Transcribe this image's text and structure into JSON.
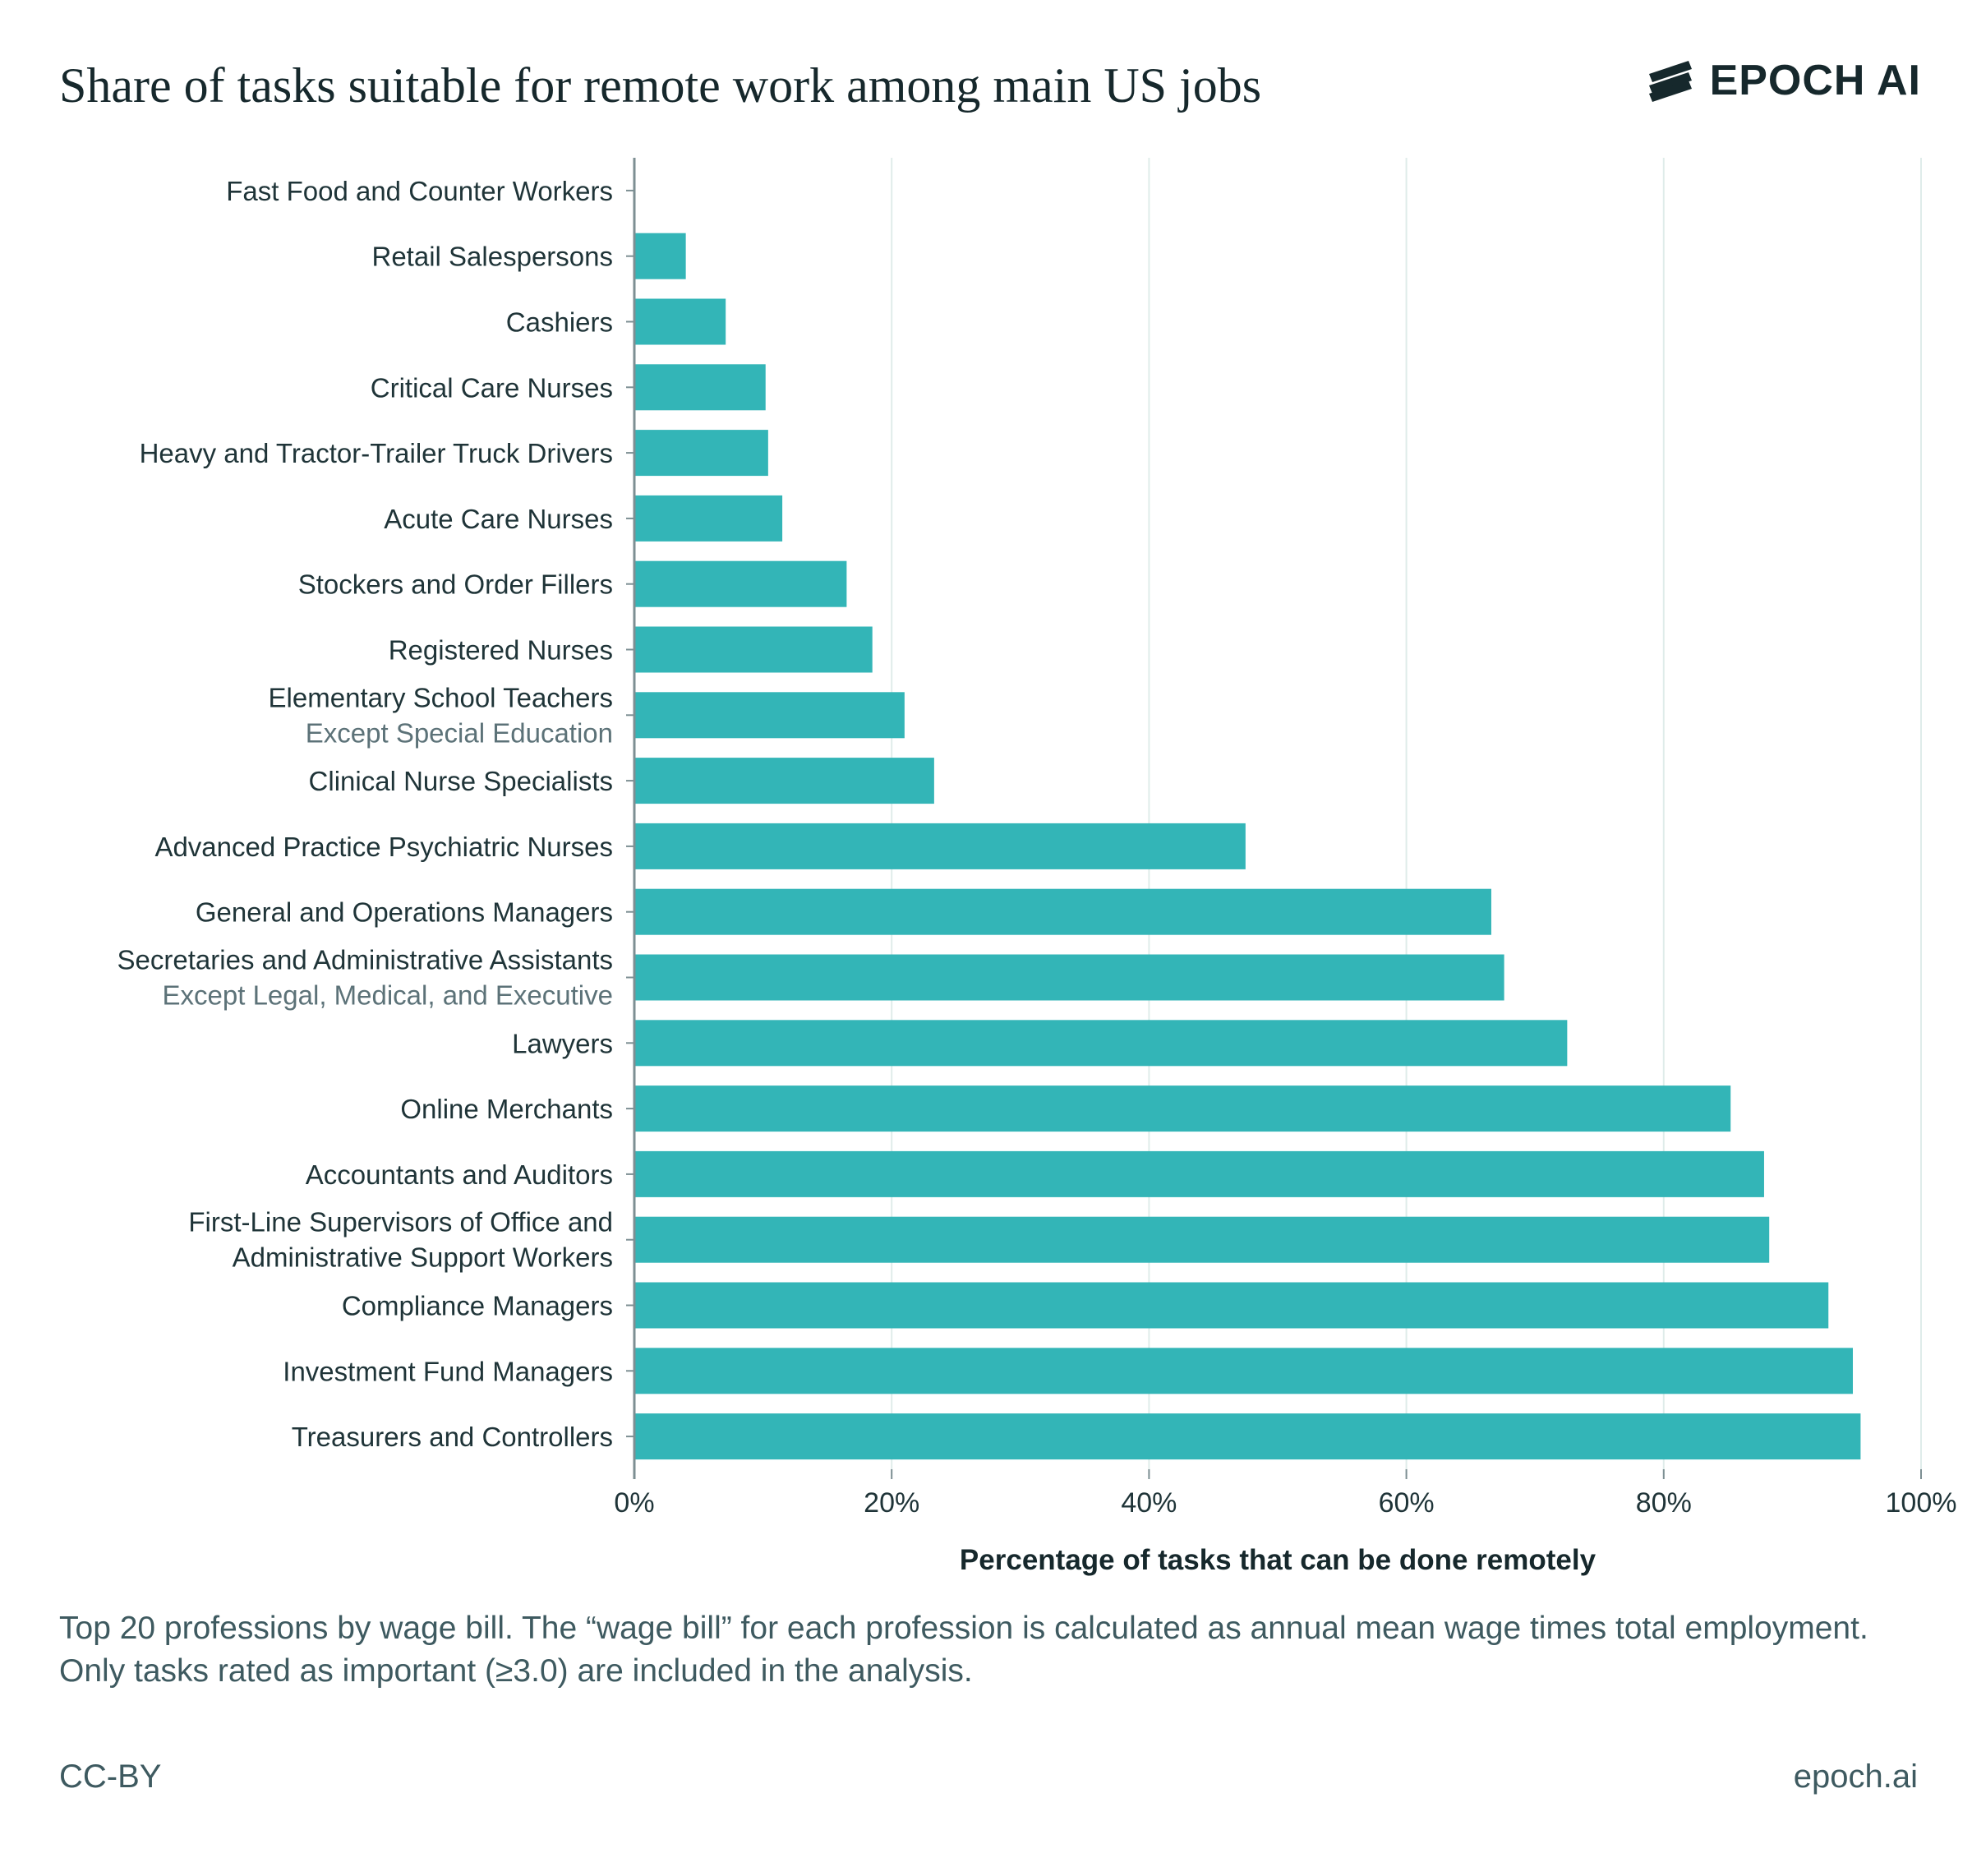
{
  "title": "Share of tasks suitable for remote work among main US jobs",
  "logo": {
    "icon": "epoch-ai-logo-icon",
    "text": "EPOCH AI"
  },
  "caption": "Top 20 professions by wage bill. The “wage bill” for each profession is calculated as annual mean wage times total employment. Only tasks rated as important (≥3.0) are included in the analysis.",
  "footer": {
    "license": "CC-BY",
    "site": "epoch.ai"
  },
  "colors": {
    "bar": "#33b5b7",
    "grid": "#dfecea",
    "axis": "#7d8f93",
    "text": "#1f3438",
    "subtext": "#5c7278"
  },
  "chart_data": {
    "type": "bar",
    "orientation": "horizontal",
    "xlabel": "Percentage of tasks that can be done remotely",
    "ylabel": "",
    "xlim": [
      0,
      100
    ],
    "ticks": [
      "0%",
      "20%",
      "40%",
      "60%",
      "80%",
      "100%"
    ],
    "grid": true,
    "categories": [
      {
        "label": "Fast Food and Counter Workers",
        "sublabel": "",
        "value": 0
      },
      {
        "label": "Retail Salespersons",
        "sublabel": "",
        "value": 4
      },
      {
        "label": "Cashiers",
        "sublabel": "",
        "value": 7.1
      },
      {
        "label": "Critical Care Nurses",
        "sublabel": "",
        "value": 10.2
      },
      {
        "label": "Heavy and Tractor-Trailer Truck Drivers",
        "sublabel": "",
        "value": 10.4
      },
      {
        "label": "Acute Care Nurses",
        "sublabel": "",
        "value": 11.5
      },
      {
        "label": "Stockers and Order Fillers",
        "sublabel": "",
        "value": 16.5
      },
      {
        "label": "Registered Nurses",
        "sublabel": "",
        "value": 18.5
      },
      {
        "label": "Elementary School Teachers",
        "sublabel": "Except Special Education",
        "value": 21
      },
      {
        "label": "Clinical Nurse Specialists",
        "sublabel": "",
        "value": 23.3
      },
      {
        "label": "Advanced Practice Psychiatric Nurses",
        "sublabel": "",
        "value": 47.5
      },
      {
        "label": "General and Operations Managers",
        "sublabel": "",
        "value": 66.6
      },
      {
        "label": "Secretaries and Administrative Assistants",
        "sublabel": "Except Legal, Medical, and Executive",
        "value": 67.6
      },
      {
        "label": "Lawyers",
        "sublabel": "",
        "value": 72.5
      },
      {
        "label": "Online Merchants",
        "sublabel": "",
        "value": 85.2
      },
      {
        "label": "Accountants and Auditors",
        "sublabel": "",
        "value": 87.8
      },
      {
        "label": "First-Line Supervisors of Office and",
        "sublabel": "Administrative Support Workers",
        "sublabel_style": "primary",
        "value": 88.2
      },
      {
        "label": "Compliance Managers",
        "sublabel": "",
        "value": 92.8
      },
      {
        "label": "Investment Fund Managers",
        "sublabel": "",
        "value": 94.7
      },
      {
        "label": "Treasurers and Controllers",
        "sublabel": "",
        "value": 95.3
      }
    ]
  }
}
